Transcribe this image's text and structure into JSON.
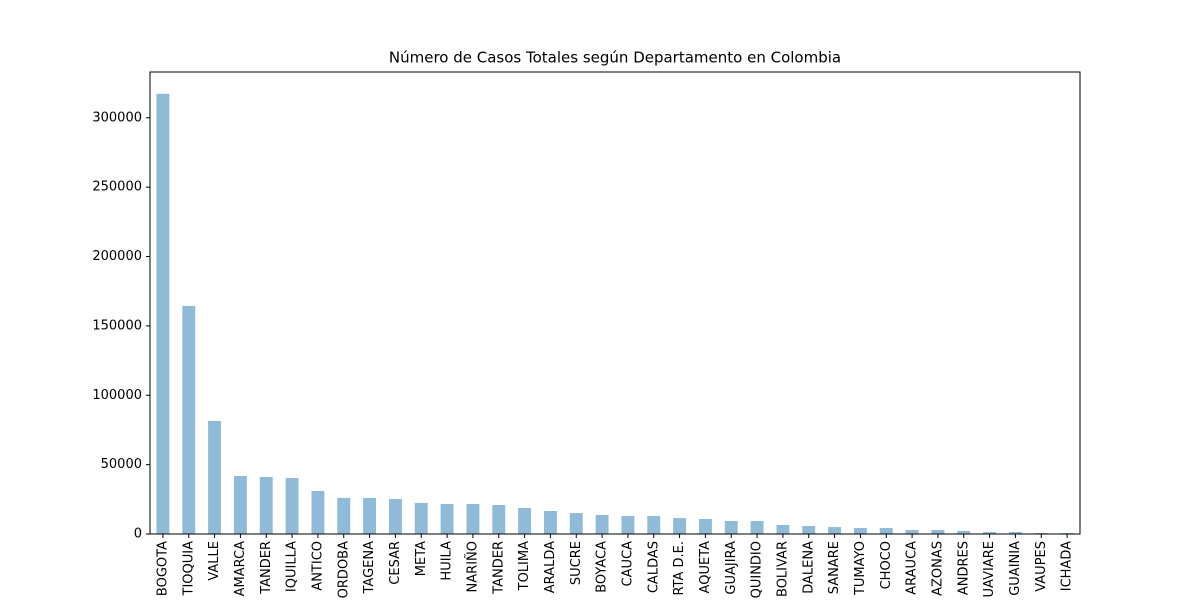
{
  "chart_data": {
    "type": "bar",
    "title": "Número de Casos Totales según Departamento en Colombia",
    "categories": [
      "BOGOTA",
      "TIOQUIA",
      "VALLE",
      "AMARCA",
      "TANDER",
      "IQUILLA",
      "ANTICO",
      "ORDOBA",
      "TAGENA",
      "CESAR",
      "META",
      "HUILA",
      "NARIÑO",
      "TANDER",
      "TOLIMA",
      "ARALDA",
      "SUCRE",
      "BOYACA",
      "CAUCA",
      "CALDAS",
      "RTA D.E.",
      "AQUETA",
      "GUAJIRA",
      "QUINDIO",
      "BOLIVAR",
      "DALENA",
      "SANARE",
      "TUMAYO",
      "CHOCO",
      "ARAUCA",
      "AZONAS",
      "ANDRES",
      "UAVIARE",
      "GUAINIA",
      "VAUPES",
      "ICHADA"
    ],
    "values": [
      317300,
      164400,
      81500,
      41800,
      41100,
      40400,
      31000,
      26000,
      26000,
      25200,
      22400,
      21600,
      21600,
      20900,
      18800,
      16600,
      15100,
      13700,
      13000,
      13000,
      11500,
      10800,
      9400,
      9400,
      6500,
      5800,
      5000,
      4300,
      4300,
      2900,
      2900,
      2200,
      1400,
      1400,
      700,
      700
    ],
    "color": "#8fbbd9",
    "ylim": [
      0,
      333000
    ],
    "yticks": [
      0,
      50000,
      100000,
      150000,
      200000,
      250000,
      300000
    ]
  }
}
